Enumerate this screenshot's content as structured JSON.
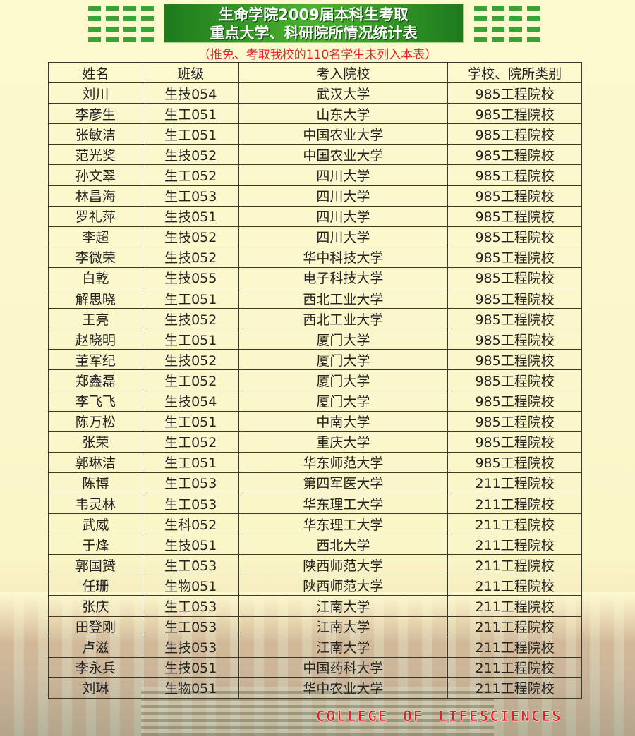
{
  "title_line1": "生命学院2009届本科生考取",
  "title_line2": "重点大学、科研院所情况统计表",
  "subtitle": "（推免、考取我校的110名学生未列入本表）",
  "colors": {
    "title_green": "#3aa335",
    "subtitle_red": "#e0262d",
    "footer_red": "#e41f23"
  },
  "columns": [
    "姓名",
    "班级",
    "考入院校",
    "学校、院所类别"
  ],
  "rows": [
    [
      "刘川",
      "生技054",
      "武汉大学",
      "985工程院校"
    ],
    [
      "李彦生",
      "生工051",
      "山东大学",
      "985工程院校"
    ],
    [
      "张敏洁",
      "生工051",
      "中国农业大学",
      "985工程院校"
    ],
    [
      "范光奖",
      "生技052",
      "中国农业大学",
      "985工程院校"
    ],
    [
      "孙文翠",
      "生工052",
      "四川大学",
      "985工程院校"
    ],
    [
      "林昌海",
      "生工053",
      "四川大学",
      "985工程院校"
    ],
    [
      "罗礼萍",
      "生技051",
      "四川大学",
      "985工程院校"
    ],
    [
      "李超",
      "生技052",
      "四川大学",
      "985工程院校"
    ],
    [
      "李微荣",
      "生技052",
      "华中科技大学",
      "985工程院校"
    ],
    [
      "白乾",
      "生技055",
      "电子科技大学",
      "985工程院校"
    ],
    [
      "解思晓",
      "生工051",
      "西北工业大学",
      "985工程院校"
    ],
    [
      "王亮",
      "生技052",
      "西北工业大学",
      "985工程院校"
    ],
    [
      "赵晓明",
      "生工051",
      "厦门大学",
      "985工程院校"
    ],
    [
      "董军纪",
      "生技052",
      "厦门大学",
      "985工程院校"
    ],
    [
      "郑鑫磊",
      "生工052",
      "厦门大学",
      "985工程院校"
    ],
    [
      "李飞飞",
      "生技054",
      "厦门大学",
      "985工程院校"
    ],
    [
      "陈万松",
      "生工051",
      "中南大学",
      "985工程院校"
    ],
    [
      "张荣",
      "生工052",
      "重庆大学",
      "985工程院校"
    ],
    [
      "郭琳洁",
      "生工051",
      "华东师范大学",
      "985工程院校"
    ],
    [
      "陈博",
      "生工053",
      "第四军医大学",
      "211工程院校"
    ],
    [
      "韦灵林",
      "生工053",
      "华东理工大学",
      "211工程院校"
    ],
    [
      "武威",
      "生科052",
      "华东理工大学",
      "211工程院校"
    ],
    [
      "于烽",
      "生技051",
      "西北大学",
      "211工程院校"
    ],
    [
      "郭国赟",
      "生工053",
      "陕西师范大学",
      "211工程院校"
    ],
    [
      "任珊",
      "生物051",
      "陕西师范大学",
      "211工程院校"
    ],
    [
      "张庆",
      "生工053",
      "江南大学",
      "211工程院校"
    ],
    [
      "田登刚",
      "生工053",
      "江南大学",
      "211工程院校"
    ],
    [
      "卢滋",
      "生技053",
      "江南大学",
      "211工程院校"
    ],
    [
      "李永兵",
      "生技051",
      "中国药科大学",
      "211工程院校"
    ],
    [
      "刘琳",
      "生物051",
      "华中农业大学",
      "211工程院校"
    ]
  ],
  "footer": "COLLEGE OF LIFESCIENCES"
}
